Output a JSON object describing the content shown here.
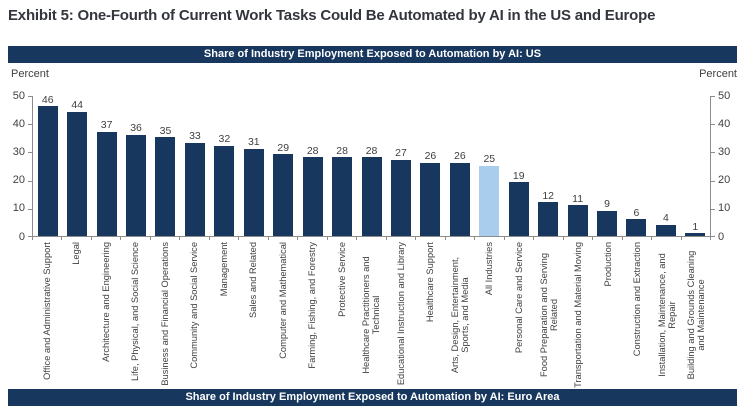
{
  "exhibit": {
    "title": "Exhibit 5: One-Fourth of Current Work Tasks Could Be Automated by AI in the US and Europe"
  },
  "panels": {
    "us_title": "Share of Industry Employment Exposed to Automation by AI: US",
    "euro_title": "Share of Industry Employment Exposed to Automation by AI: Euro Area"
  },
  "colors": {
    "bar": "#17375e",
    "highlight_bar": "#a9cdec",
    "band_background": "#17375e",
    "band_text": "#ffffff",
    "axis_line": "#8c8c8c"
  },
  "chart_data": {
    "type": "bar",
    "title": "Share of Industry Employment Exposed to Automation by AI: US",
    "ylabel": "Percent",
    "ylabel_right": "Percent",
    "xlabel": "",
    "ylim": [
      0,
      50
    ],
    "yticks": [
      0,
      10,
      20,
      30,
      40,
      50
    ],
    "grid": false,
    "highlight_category": "All Industries",
    "highlight_index": 15,
    "categories": [
      "Office and Administrative Support",
      "Legal",
      "Architecture and Engineering",
      "Life, Physical, and Social Science",
      "Business and Financial Operations",
      "Community and Social Service",
      "Management",
      "Sales and Related",
      "Computer and Mathematical",
      "Farming, Fishing, and Forestry",
      "Protective Service",
      "Healthcare Practitioners and Technical",
      "Educational Instruction and Library",
      "Healthcare Support",
      "Arts, Design, Entertainment, Sports, and Media",
      "All Industries",
      "Personal Care and Service",
      "Food Preparation and Serving Related",
      "Transportation and Material Moving",
      "Production",
      "Construction and Extraction",
      "Installation, Maintenance, and Repair",
      "Building and Grounds Cleaning and Maintenance"
    ],
    "values": [
      46,
      44,
      37,
      36,
      35,
      33,
      32,
      31,
      29,
      28,
      28,
      28,
      27,
      26,
      26,
      25,
      19,
      12,
      11,
      9,
      6,
      4,
      1
    ]
  }
}
